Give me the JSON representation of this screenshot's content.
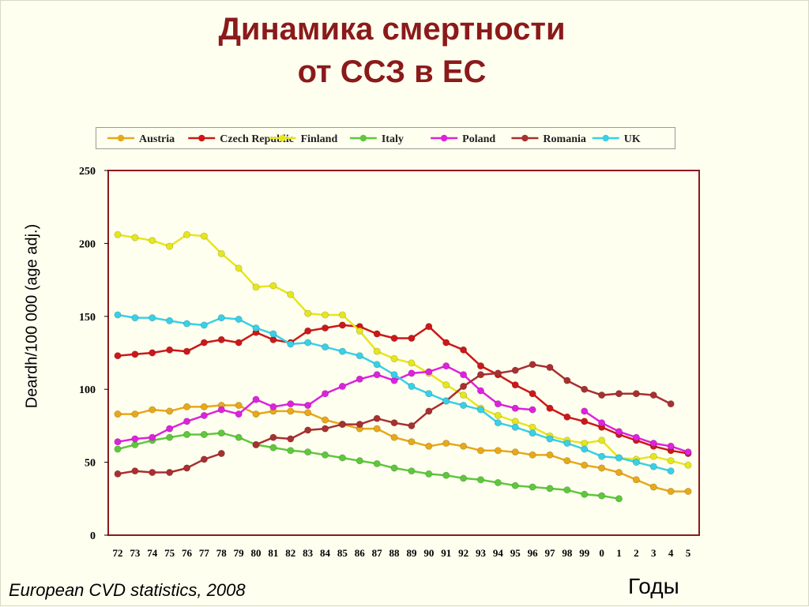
{
  "slide": {
    "title_line1": "Динамика смертности",
    "title_line2": "от ССЗ в ЕС",
    "source": "European CVD statistics, 2008",
    "x_title": "Годы"
  },
  "chart_data": {
    "type": "line",
    "title": "",
    "xlabel": "",
    "ylabel": "Deardh/100 000 (age adj.)",
    "ylim": [
      0,
      250
    ],
    "yticks": [
      0,
      50,
      100,
      150,
      200,
      250
    ],
    "grid": false,
    "legend_position": "top",
    "colors": {
      "background": "#fffff0",
      "plot_border": "#8b1a1a",
      "title": "#8b1a1a"
    },
    "categories": [
      "72",
      "73",
      "74",
      "75",
      "76",
      "77",
      "78",
      "79",
      "80",
      "81",
      "82",
      "83",
      "84",
      "85",
      "86",
      "87",
      "88",
      "89",
      "90",
      "91",
      "92",
      "93",
      "94",
      "95",
      "96",
      "97",
      "98",
      "99",
      "0",
      "1",
      "2",
      "3",
      "4",
      "5"
    ],
    "series": [
      {
        "name": "Austria",
        "color": "#e8a818",
        "values": [
          83,
          83,
          86,
          85,
          88,
          88,
          89,
          89,
          83,
          85,
          85,
          84,
          79,
          76,
          73,
          73,
          67,
          64,
          61,
          63,
          61,
          58,
          58,
          57,
          55,
          55,
          51,
          48,
          46,
          43,
          38,
          33,
          30,
          30
        ]
      },
      {
        "name": "Czech Republic",
        "color": "#cc1818",
        "values": [
          123,
          124,
          125,
          127,
          126,
          132,
          134,
          132,
          139,
          134,
          132,
          140,
          142,
          144,
          143,
          138,
          135,
          135,
          143,
          132,
          127,
          116,
          110,
          103,
          97,
          87,
          81,
          78,
          74,
          69,
          65,
          61,
          58,
          56
        ]
      },
      {
        "name": "Finland",
        "color": "#e6e61c",
        "values": [
          206,
          204,
          202,
          198,
          206,
          205,
          193,
          183,
          170,
          171,
          165,
          152,
          151,
          151,
          140,
          126,
          121,
          118,
          111,
          103,
          96,
          87,
          82,
          78,
          74,
          68,
          65,
          63,
          65,
          53,
          52,
          54,
          51,
          48
        ]
      },
      {
        "name": "Italy",
        "color": "#5ec83c",
        "values": [
          59,
          62,
          65,
          67,
          69,
          69,
          70,
          67,
          62,
          60,
          58,
          57,
          55,
          53,
          51,
          49,
          46,
          44,
          42,
          41,
          39,
          38,
          36,
          34,
          33,
          32,
          31,
          28,
          27,
          25,
          null,
          null,
          null,
          null
        ]
      },
      {
        "name": "Poland",
        "color": "#dd22dd",
        "values": [
          64,
          66,
          67,
          73,
          78,
          82,
          86,
          83,
          93,
          88,
          90,
          89,
          97,
          102,
          107,
          110,
          106,
          111,
          112,
          116,
          110,
          99,
          90,
          87,
          86,
          null,
          null,
          85,
          77,
          71,
          67,
          63,
          61,
          57
        ]
      },
      {
        "name": "Romania",
        "color": "#a83030",
        "values": [
          42,
          44,
          43,
          43,
          46,
          52,
          56,
          null,
          62,
          67,
          66,
          72,
          73,
          76,
          76,
          80,
          77,
          75,
          85,
          92,
          102,
          110,
          111,
          113,
          117,
          115,
          106,
          100,
          96,
          97,
          97,
          96,
          90,
          null
        ]
      },
      {
        "name": "UK",
        "color": "#38d0e8",
        "values": [
          151,
          149,
          149,
          147,
          145,
          144,
          149,
          148,
          142,
          138,
          131,
          132,
          129,
          126,
          123,
          117,
          110,
          102,
          97,
          92,
          89,
          86,
          77,
          74,
          70,
          66,
          63,
          59,
          54,
          53,
          50,
          47,
          44,
          null
        ]
      }
    ]
  }
}
